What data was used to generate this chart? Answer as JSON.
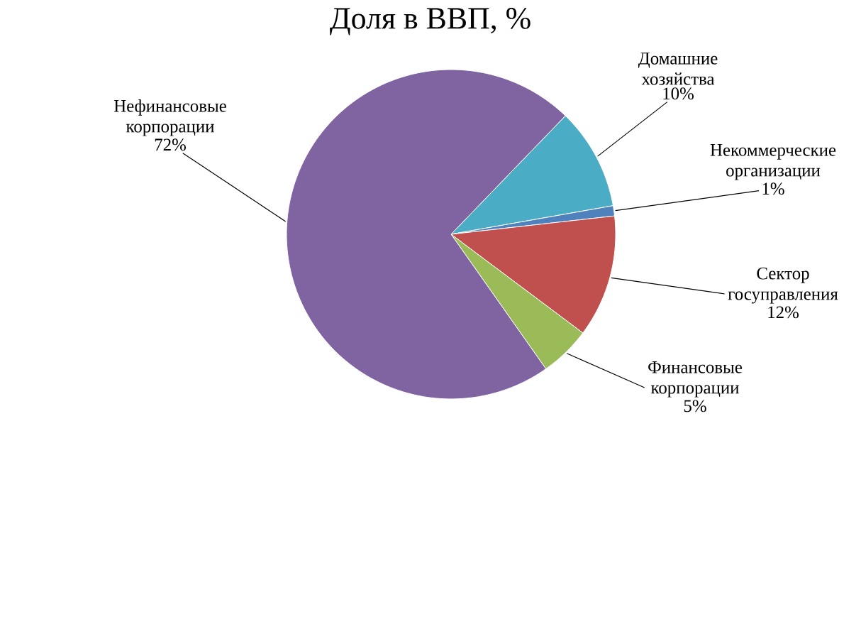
{
  "chart_data": {
    "type": "pie",
    "title": "Доля в ВВП, %",
    "categories": [
      "Домашние хозяйства",
      "Некоммерческие организации",
      "Сектор госуправления",
      "Финансовые корпорации",
      "Нефинансовые корпорации"
    ],
    "values": [
      10,
      1,
      12,
      5,
      72
    ],
    "colors": [
      "#4bacc6",
      "#4f81bd",
      "#c0504d",
      "#9bbb59",
      "#8064a2"
    ],
    "value_labels": [
      "10%",
      "1%",
      "12%",
      "5%",
      "72%"
    ]
  }
}
